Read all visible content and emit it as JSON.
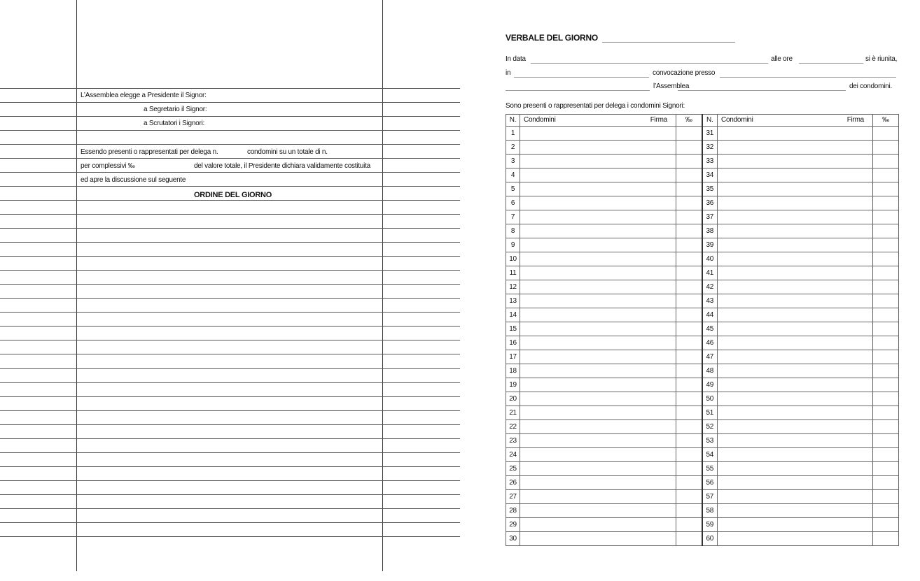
{
  "left_page": {
    "president_label": "L’Assemblea elegge a Presidente il Signor:",
    "secretary_label": "a Segretario il Signor:",
    "scrutineers_label": "a Scrutatori i Signori:",
    "present_text_1": "Essendo presenti o rappresentati per delega n.",
    "present_text_2": "condomini su un totale di n.",
    "total_text_1": "per complessivi ‰",
    "total_text_2": "del valore totale, il Presidente dichiara validamente costituita",
    "discussion_text": "ed apre la discussione sul seguente",
    "agenda_title": "ORDINE DEL GIORNO"
  },
  "right_page": {
    "title": "VERBALE DEL GIORNO",
    "line1_in_data": "In data",
    "line1_alle_ore": "alle ore",
    "line1_riunita": "si è riunita,",
    "line2_in": "in",
    "line2_convocazione": "convocazione presso",
    "line3_assemblea": "l’Assemblea",
    "line3_condomini": "dei condomini.",
    "present_intro": "Sono presenti o rappresentati per delega i condomini Signori:",
    "table": {
      "headers": [
        "N.",
        "Condomini",
        "Firma",
        "‰",
        "N.",
        "Condomini",
        "Firma",
        "‰"
      ],
      "left_numbers": [
        "1",
        "2",
        "3",
        "4",
        "5",
        "6",
        "7",
        "8",
        "9",
        "10",
        "11",
        "12",
        "13",
        "14",
        "15",
        "16",
        "17",
        "18",
        "19",
        "20",
        "21",
        "22",
        "23",
        "24",
        "25",
        "26",
        "27",
        "28",
        "29",
        "30"
      ],
      "right_numbers": [
        "31",
        "32",
        "33",
        "34",
        "35",
        "36",
        "37",
        "38",
        "39",
        "40",
        "41",
        "42",
        "43",
        "44",
        "45",
        "46",
        "47",
        "48",
        "49",
        "50",
        "51",
        "52",
        "53",
        "54",
        "55",
        "56",
        "57",
        "58",
        "59",
        "60"
      ]
    }
  }
}
